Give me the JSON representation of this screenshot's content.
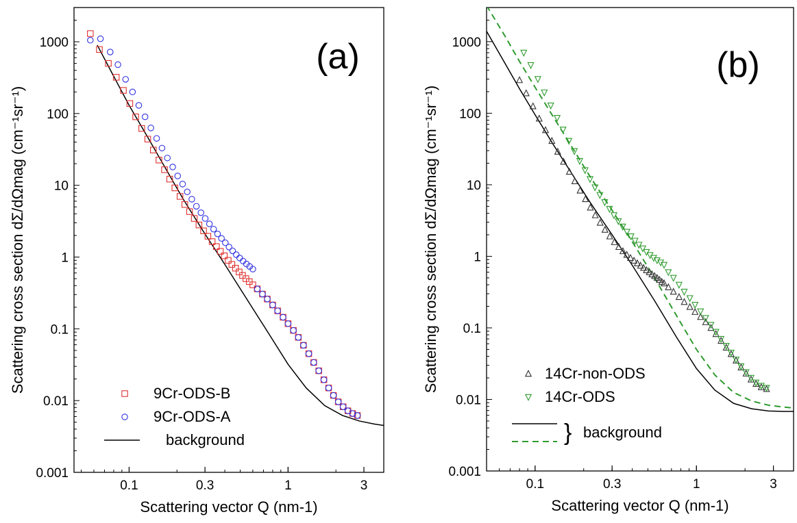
{
  "chart_data": [
    {
      "type": "scatter",
      "panel_label": "(a)",
      "xlabel": "Scattering vector Q (nm-1)",
      "ylabel": "Scattering cross section dΣ/dΩmag (cm⁻¹sr⁻¹)",
      "xscale": "log",
      "yscale": "log",
      "xlim": [
        0.045,
        4.0
      ],
      "ylim": [
        0.001,
        3000
      ],
      "xticks": [
        0.1,
        0.3,
        1,
        3
      ],
      "xtick_labels": [
        "0.1",
        "0.3",
        "1",
        "3"
      ],
      "yticks": [
        0.001,
        0.01,
        0.1,
        1,
        10,
        100,
        1000
      ],
      "ytick_labels": [
        "0.001",
        "0.01",
        "0.1",
        "1",
        "10",
        "100",
        "1000"
      ],
      "legend_position": "bottom-left",
      "series": [
        {
          "name": "9Cr-ODS-B",
          "marker": "square",
          "color": "#e03030",
          "x": [
            0.057,
            0.065,
            0.074,
            0.083,
            0.092,
            0.101,
            0.11,
            0.12,
            0.131,
            0.142,
            0.154,
            0.167,
            0.18,
            0.194,
            0.209,
            0.224,
            0.24,
            0.257,
            0.275,
            0.294,
            0.313,
            0.333,
            0.354,
            0.375,
            0.397,
            0.42,
            0.443,
            0.467,
            0.492,
            0.517,
            0.543,
            0.57,
            0.6,
            0.64,
            0.69,
            0.74,
            0.8,
            0.86,
            0.93,
            1.0,
            1.08,
            1.16,
            1.25,
            1.35,
            1.45,
            1.56,
            1.68,
            1.8,
            1.93,
            2.07,
            2.22,
            2.38,
            2.55,
            2.73
          ],
          "y": [
            1300,
            780,
            500,
            320,
            210,
            138,
            90,
            62,
            44,
            31,
            22.5,
            16.5,
            12.2,
            9.2,
            7.0,
            5.4,
            4.3,
            3.45,
            2.8,
            2.32,
            1.95,
            1.64,
            1.4,
            1.2,
            1.04,
            0.9,
            0.79,
            0.7,
            0.62,
            0.555,
            0.5,
            0.455,
            0.41,
            0.36,
            0.305,
            0.26,
            0.215,
            0.178,
            0.145,
            0.118,
            0.095,
            0.076,
            0.059,
            0.045,
            0.034,
            0.026,
            0.0195,
            0.015,
            0.0118,
            0.0096,
            0.0082,
            0.0072,
            0.0066,
            0.0062
          ]
        },
        {
          "name": "9Cr-ODS-A",
          "marker": "circle",
          "color": "#3030e0",
          "x": [
            0.057,
            0.066,
            0.076,
            0.085,
            0.095,
            0.105,
            0.115,
            0.126,
            0.137,
            0.149,
            0.161,
            0.174,
            0.188,
            0.202,
            0.217,
            0.232,
            0.248,
            0.265,
            0.283,
            0.301,
            0.32,
            0.34,
            0.36,
            0.381,
            0.403,
            0.425,
            0.448,
            0.472,
            0.496,
            0.521,
            0.547,
            0.573,
            0.6,
            0.64,
            0.69,
            0.74,
            0.8,
            0.86,
            0.93,
            1.0,
            1.08,
            1.16,
            1.25,
            1.35,
            1.45,
            1.56,
            1.68,
            1.8,
            1.93,
            2.07,
            2.22,
            2.38,
            2.55,
            2.73
          ],
          "y": [
            1050,
            1100,
            720,
            480,
            300,
            200,
            130,
            90,
            63,
            45,
            33,
            24,
            18,
            13.5,
            10.4,
            8.1,
            6.4,
            5.1,
            4.15,
            3.45,
            2.9,
            2.45,
            2.1,
            1.82,
            1.58,
            1.38,
            1.22,
            1.08,
            0.97,
            0.88,
            0.8,
            0.74,
            0.68,
            0.36,
            0.305,
            0.26,
            0.215,
            0.178,
            0.145,
            0.118,
            0.095,
            0.076,
            0.059,
            0.045,
            0.034,
            0.026,
            0.0195,
            0.015,
            0.0118,
            0.0096,
            0.0082,
            0.0072,
            0.0066,
            0.0062
          ]
        }
      ],
      "lines": [
        {
          "name": "background",
          "style": "solid",
          "color": "#000000",
          "x": [
            0.063,
            0.08,
            0.1,
            0.13,
            0.17,
            0.22,
            0.3,
            0.4,
            0.55,
            0.75,
            1.0,
            1.3,
            1.7,
            2.2,
            2.8,
            3.5,
            4.0
          ],
          "y": [
            900,
            330,
            130,
            48,
            17,
            6.3,
            2.1,
            0.79,
            0.26,
            0.088,
            0.032,
            0.015,
            0.0085,
            0.0062,
            0.0052,
            0.0047,
            0.0045
          ]
        }
      ],
      "legend": [
        {
          "label": "9Cr-ODS-B",
          "marker": "square",
          "color": "#e03030"
        },
        {
          "label": "9Cr-ODS-A",
          "marker": "circle",
          "color": "#3030e0"
        },
        {
          "label": "background",
          "style": "solid-line",
          "color": "#000000"
        }
      ]
    },
    {
      "type": "scatter",
      "panel_label": "(b)",
      "xlabel": "Scattering vector Q (nm-1)",
      "ylabel": "Scattering cross section dΣ/dΩmag (cm⁻¹sr⁻¹)",
      "xscale": "log",
      "yscale": "log",
      "xlim": [
        0.05,
        4.0
      ],
      "ylim": [
        0.001,
        3000
      ],
      "xticks": [
        0.1,
        0.3,
        1,
        3
      ],
      "xtick_labels": [
        "0.1",
        "0.3",
        "1",
        "3"
      ],
      "yticks": [
        0.001,
        0.01,
        0.1,
        1,
        10,
        100,
        1000
      ],
      "ytick_labels": [
        "0.001",
        "0.01",
        "0.1",
        "1",
        "10",
        "100",
        "1000"
      ],
      "legend_position": "bottom-left",
      "series": [
        {
          "name": "14Cr-non-ODS",
          "marker": "triangle-up",
          "color": "#303030",
          "x": [
            0.08,
            0.088,
            0.097,
            0.106,
            0.116,
            0.127,
            0.138,
            0.15,
            0.163,
            0.176,
            0.19,
            0.205,
            0.22,
            0.236,
            0.253,
            0.271,
            0.29,
            0.31,
            0.33,
            0.35,
            0.37,
            0.39,
            0.41,
            0.43,
            0.45,
            0.47,
            0.49,
            0.51,
            0.53,
            0.55,
            0.57,
            0.59,
            0.61,
            0.63,
            0.67,
            0.72,
            0.78,
            0.84,
            0.91,
            0.98,
            1.06,
            1.14,
            1.23,
            1.32,
            1.42,
            1.53,
            1.64,
            1.76,
            1.89,
            2.03,
            2.18,
            2.34,
            2.52,
            2.72
          ],
          "y": [
            290,
            190,
            125,
            84,
            58,
            41,
            29,
            21,
            15.2,
            11.2,
            8.3,
            6.3,
            4.8,
            3.75,
            2.95,
            2.35,
            1.9,
            1.58,
            1.35,
            1.18,
            1.05,
            0.95,
            0.87,
            0.8,
            0.74,
            0.69,
            0.64,
            0.6,
            0.56,
            0.53,
            0.5,
            0.47,
            0.44,
            0.42,
            0.37,
            0.32,
            0.27,
            0.23,
            0.196,
            0.167,
            0.142,
            0.12,
            0.1,
            0.082,
            0.066,
            0.053,
            0.043,
            0.035,
            0.028,
            0.023,
            0.019,
            0.0165,
            0.0148,
            0.014
          ]
        },
        {
          "name": "14Cr-ODS",
          "marker": "triangle-down",
          "color": "#2e9a2e",
          "x": [
            0.085,
            0.094,
            0.104,
            0.114,
            0.125,
            0.137,
            0.149,
            0.162,
            0.175,
            0.189,
            0.204,
            0.219,
            0.235,
            0.252,
            0.27,
            0.289,
            0.308,
            0.328,
            0.349,
            0.371,
            0.393,
            0.416,
            0.44,
            0.465,
            0.49,
            0.516,
            0.543,
            0.57,
            0.6,
            0.63,
            0.67,
            0.72,
            0.78,
            0.84,
            0.91,
            0.98,
            1.06,
            1.14,
            1.23,
            1.32,
            1.42,
            1.53,
            1.64,
            1.76,
            1.89,
            2.03,
            2.18,
            2.34,
            2.52,
            2.72
          ],
          "y": [
            700,
            470,
            300,
            195,
            128,
            86,
            59,
            41,
            29.5,
            21.5,
            16,
            12,
            9.2,
            7.2,
            5.7,
            4.6,
            3.75,
            3.1,
            2.6,
            2.2,
            1.9,
            1.65,
            1.45,
            1.29,
            1.15,
            1.04,
            0.95,
            0.88,
            0.82,
            0.76,
            0.6,
            0.5,
            0.4,
            0.32,
            0.26,
            0.21,
            0.17,
            0.137,
            0.11,
            0.088,
            0.07,
            0.056,
            0.045,
            0.036,
            0.029,
            0.024,
            0.02,
            0.0172,
            0.0155,
            0.0145
          ]
        }
      ],
      "lines": [
        {
          "name": "background",
          "style": "solid",
          "color": "#000000",
          "x": [
            0.05,
            0.065,
            0.08,
            0.1,
            0.13,
            0.17,
            0.22,
            0.3,
            0.4,
            0.55,
            0.75,
            1.0,
            1.3,
            1.7,
            2.2,
            2.8,
            3.5,
            4.0
          ],
          "y": [
            1400,
            500,
            220,
            95,
            36,
            14,
            5.6,
            2.0,
            0.75,
            0.24,
            0.075,
            0.027,
            0.0135,
            0.0088,
            0.0074,
            0.0069,
            0.0068,
            0.0068
          ]
        },
        {
          "name": "background",
          "style": "dashed",
          "color": "#2e9a2e",
          "x": [
            0.05,
            0.065,
            0.08,
            0.1,
            0.13,
            0.17,
            0.22,
            0.3,
            0.4,
            0.55,
            0.75,
            1.0,
            1.3,
            1.7,
            2.2,
            2.8,
            3.5,
            4.0
          ],
          "y": [
            3200,
            1200,
            530,
            230,
            88,
            33,
            12.8,
            4.4,
            1.6,
            0.5,
            0.15,
            0.05,
            0.022,
            0.0125,
            0.0095,
            0.0083,
            0.0078,
            0.0076
          ]
        }
      ],
      "legend": [
        {
          "label": "14Cr-non-ODS",
          "marker": "triangle-up",
          "color": "#303030"
        },
        {
          "label": "14Cr-ODS",
          "marker": "triangle-down",
          "color": "#2e9a2e"
        }
      ],
      "legend_group": {
        "label": "background",
        "brace": "}",
        "lines": [
          "solid",
          "dashed"
        ]
      }
    }
  ]
}
